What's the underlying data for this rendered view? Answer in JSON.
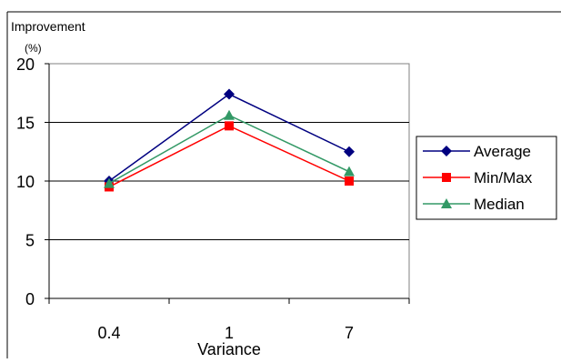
{
  "chart_data": {
    "type": "line",
    "title": "",
    "ylabel": "Improvement",
    "yunit": "(%)",
    "xlabel": "Variance",
    "categories": [
      "0.4",
      "1",
      "7"
    ],
    "ylim": [
      0,
      20
    ],
    "yticks": [
      0,
      5,
      10,
      15,
      20
    ],
    "grid": true,
    "legend_position": "right",
    "series": [
      {
        "name": "Average",
        "values": [
          10.0,
          17.4,
          12.5
        ],
        "color": "#000080",
        "marker": "diamond"
      },
      {
        "name": "Min/Max",
        "values": [
          9.5,
          14.7,
          10.0
        ],
        "color": "#ff0000",
        "marker": "square"
      },
      {
        "name": "Median",
        "values": [
          9.8,
          15.6,
          10.8
        ],
        "color": "#339966",
        "marker": "triangle"
      }
    ]
  }
}
